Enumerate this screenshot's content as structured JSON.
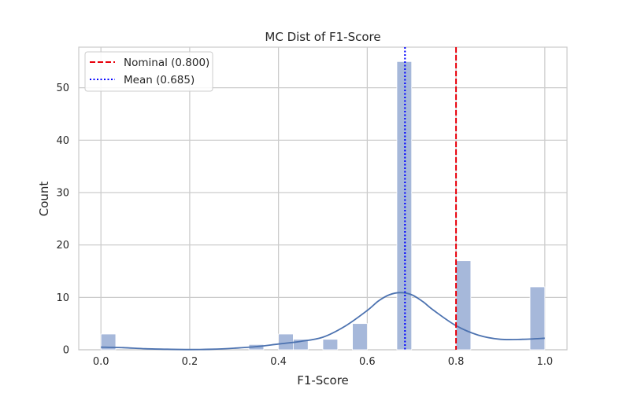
{
  "chart_data": {
    "type": "histogram",
    "title": "MC Dist of F1-Score",
    "xlabel": "F1-Score",
    "ylabel": "Count",
    "xlim": [
      -0.05,
      1.05
    ],
    "ylim": [
      0,
      57.75
    ],
    "xticks": [
      "0.0",
      "0.2",
      "0.4",
      "0.6",
      "0.8",
      "1.0"
    ],
    "yticks": [
      "0",
      "10",
      "20",
      "30",
      "40",
      "50"
    ],
    "grid": true,
    "legend_position": "top-left",
    "bar_color": "#a6b8da",
    "kde_color": "#4c72b0",
    "bins": [
      {
        "x0": 0.0,
        "x1": 0.0333,
        "count": 3
      },
      {
        "x0": 0.3333,
        "x1": 0.3667,
        "count": 1
      },
      {
        "x0": 0.4,
        "x1": 0.4333,
        "count": 3
      },
      {
        "x0": 0.4333,
        "x1": 0.4667,
        "count": 2
      },
      {
        "x0": 0.5,
        "x1": 0.5333,
        "count": 2
      },
      {
        "x0": 0.5667,
        "x1": 0.6,
        "count": 5
      },
      {
        "x0": 0.6667,
        "x1": 0.7,
        "count": 55
      },
      {
        "x0": 0.8,
        "x1": 0.8333,
        "count": 17
      },
      {
        "x0": 0.9667,
        "x1": 1.0,
        "count": 12
      }
    ],
    "kde": {
      "x": [
        0.0,
        0.05,
        0.1,
        0.15,
        0.2,
        0.25,
        0.3,
        0.35,
        0.4,
        0.45,
        0.5,
        0.55,
        0.6,
        0.625,
        0.65,
        0.675,
        0.7,
        0.725,
        0.75,
        0.8,
        0.85,
        0.9,
        0.95,
        1.0
      ],
      "y": [
        0.5,
        0.4,
        0.2,
        0.1,
        0.05,
        0.1,
        0.3,
        0.6,
        1.1,
        1.6,
        2.4,
        4.5,
        7.5,
        9.3,
        10.5,
        10.9,
        10.5,
        9.2,
        7.5,
        4.6,
        2.8,
        2.0,
        2.0,
        2.2
      ]
    },
    "reference_lines": [
      {
        "label": "Nominal (0.800)",
        "value": 0.8,
        "color": "#e8000b",
        "style": "dashed"
      },
      {
        "label": "Mean (0.685)",
        "value": 0.685,
        "color": "#0000ff",
        "style": "dotted"
      }
    ]
  }
}
